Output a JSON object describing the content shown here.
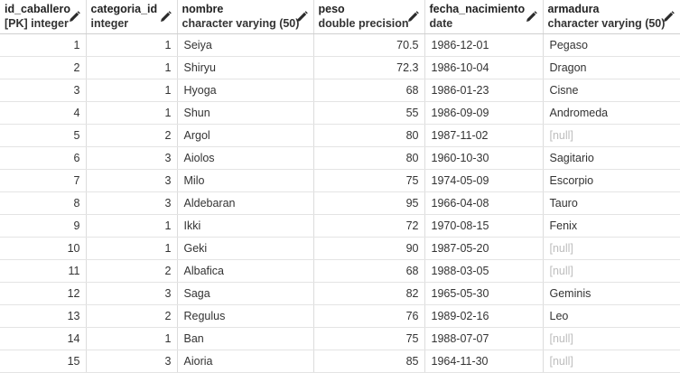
{
  "columns": [
    {
      "name": "id_caballero",
      "type": "[PK] integer",
      "align": "num"
    },
    {
      "name": "categoria_id",
      "type": "integer",
      "align": "num"
    },
    {
      "name": "nombre",
      "type": "character varying (50)",
      "align": "txt"
    },
    {
      "name": "peso",
      "type": "double precision",
      "align": "num"
    },
    {
      "name": "fecha_nacimiento",
      "type": "date",
      "align": "txt"
    },
    {
      "name": "armadura",
      "type": "character varying (50)",
      "align": "txt"
    }
  ],
  "null_label": "[null]",
  "rows": [
    [
      "1",
      "1",
      "Seiya",
      "70.5",
      "1986-12-01",
      "Pegaso"
    ],
    [
      "2",
      "1",
      "Shiryu",
      "72.3",
      "1986-10-04",
      "Dragon"
    ],
    [
      "3",
      "1",
      "Hyoga",
      "68",
      "1986-01-23",
      "Cisne"
    ],
    [
      "4",
      "1",
      "Shun",
      "55",
      "1986-09-09",
      "Andromeda"
    ],
    [
      "5",
      "2",
      "Argol",
      "80",
      "1987-11-02",
      null
    ],
    [
      "6",
      "3",
      "Aiolos",
      "80",
      "1960-10-30",
      "Sagitario"
    ],
    [
      "7",
      "3",
      "Milo",
      "75",
      "1974-05-09",
      "Escorpio"
    ],
    [
      "8",
      "3",
      "Aldebaran",
      "95",
      "1966-04-08",
      "Tauro"
    ],
    [
      "9",
      "1",
      "Ikki",
      "72",
      "1970-08-15",
      "Fenix"
    ],
    [
      "10",
      "1",
      "Geki",
      "90",
      "1987-05-20",
      null
    ],
    [
      "11",
      "2",
      "Albafica",
      "68",
      "1988-03-05",
      null
    ],
    [
      "12",
      "3",
      "Saga",
      "82",
      "1965-05-30",
      "Geminis"
    ],
    [
      "13",
      "2",
      "Regulus",
      "76",
      "1989-02-16",
      "Leo"
    ],
    [
      "14",
      "1",
      "Ban",
      "75",
      "1988-07-07",
      null
    ],
    [
      "15",
      "3",
      "Aioria",
      "85",
      "1964-11-30",
      null
    ]
  ]
}
